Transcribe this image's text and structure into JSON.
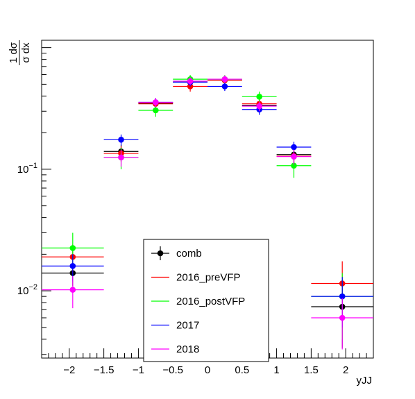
{
  "chart_data": {
    "type": "scatter",
    "xlabel": "yJJ",
    "ylabel": {
      "numerator": "1 dσ",
      "denominator": "σ dx"
    },
    "xlim": [
      -2.4,
      2.4
    ],
    "ylim": [
      0.0028,
      1.15
    ],
    "yscale": "log",
    "grid": false,
    "legend_position": "bottom-center",
    "x_ticks": [
      {
        "value": -2,
        "label": "−2"
      },
      {
        "value": -1.5,
        "label": "−1.5"
      },
      {
        "value": -1,
        "label": "−1"
      },
      {
        "value": -0.5,
        "label": "−0.5"
      },
      {
        "value": 0,
        "label": "0"
      },
      {
        "value": 0.5,
        "label": "0.5"
      },
      {
        "value": 1,
        "label": "1"
      },
      {
        "value": 1.5,
        "label": "1.5"
      },
      {
        "value": 2,
        "label": "2"
      }
    ],
    "y_ticks": [
      {
        "value": 0.01,
        "base": "10",
        "exp": "−2"
      },
      {
        "value": 0.1,
        "base": "10",
        "exp": "−1"
      }
    ],
    "bins": [
      [
        -2.5,
        -1.5
      ],
      [
        -1.5,
        -1.0
      ],
      [
        -1.0,
        -0.5
      ],
      [
        -0.5,
        0.0
      ],
      [
        0.0,
        0.5
      ],
      [
        0.5,
        1.0
      ],
      [
        1.0,
        1.5
      ],
      [
        1.5,
        2.5
      ]
    ],
    "series": [
      {
        "name": "comb",
        "color": "#000000",
        "x": [
          -1.95,
          -1.25,
          -0.75,
          -0.25,
          0.25,
          0.75,
          1.25,
          1.95
        ],
        "y": [
          0.014,
          0.14,
          0.35,
          0.52,
          0.54,
          0.335,
          0.132,
          0.0074
        ],
        "yerr": [
          0.003,
          0.018,
          0.03,
          0.04,
          0.04,
          0.03,
          0.018,
          0.004
        ]
      },
      {
        "name": "2016_preVFP",
        "color": "#ff0000",
        "x": [
          -1.95,
          -1.25,
          -0.75,
          -0.25,
          0.25,
          0.75,
          1.25,
          1.95
        ],
        "y": [
          0.019,
          0.135,
          0.345,
          0.48,
          0.54,
          0.345,
          0.128,
          0.0115
        ],
        "yerr": [
          0.005,
          0.02,
          0.035,
          0.045,
          0.045,
          0.035,
          0.02,
          0.006
        ]
      },
      {
        "name": "2016_postVFP",
        "color": "#00ff00",
        "x": [
          -1.95,
          -1.25,
          -0.75,
          -0.25,
          0.25,
          0.75,
          1.25,
          1.95
        ],
        "y": [
          0.0225,
          0.125,
          0.305,
          0.55,
          0.55,
          0.395,
          0.107,
          0.009
        ],
        "yerr": [
          0.0075,
          0.025,
          0.035,
          0.045,
          0.045,
          0.04,
          0.022,
          0.005
        ]
      },
      {
        "name": "2017",
        "color": "#0000ff",
        "x": [
          -1.95,
          -1.25,
          -0.75,
          -0.25,
          0.25,
          0.75,
          1.25,
          1.95
        ],
        "y": [
          0.016,
          0.175,
          0.355,
          0.52,
          0.48,
          0.31,
          0.152,
          0.009
        ],
        "yerr": [
          0.004,
          0.018,
          0.03,
          0.04,
          0.04,
          0.03,
          0.016,
          0.004
        ]
      },
      {
        "name": "2018",
        "color": "#ff00ff",
        "x": [
          -1.95,
          -1.25,
          -0.75,
          -0.25,
          0.25,
          0.75,
          1.25,
          1.95
        ],
        "y": [
          0.0102,
          0.125,
          0.355,
          0.53,
          0.55,
          0.33,
          0.127,
          0.006
        ],
        "yerr": [
          0.003,
          0.02,
          0.03,
          0.04,
          0.04,
          0.03,
          0.018,
          0.0027
        ]
      }
    ]
  }
}
